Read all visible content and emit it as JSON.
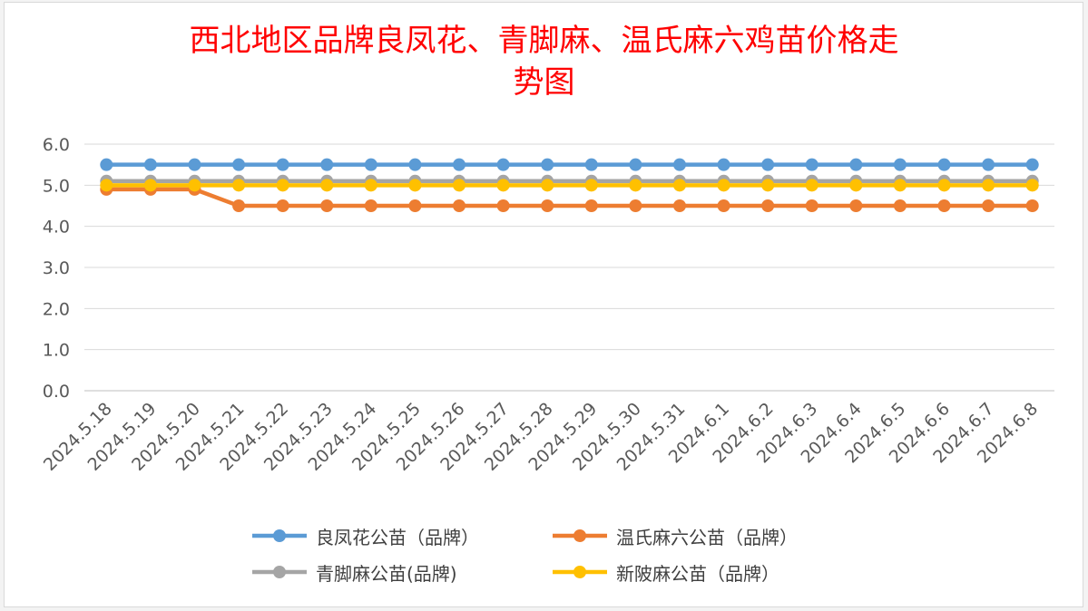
{
  "chart_data": {
    "type": "line",
    "title": "西北地区品牌良凤花、青脚麻、温氏麻六鸡苗价格走势图",
    "title_lines": [
      "西北地区品牌良凤花、青脚麻、温氏麻六鸡苗价格走",
      "势图"
    ],
    "xlabel": "",
    "ylabel": "",
    "ylim": [
      0,
      6
    ],
    "yticks": [
      "0.0",
      "1.0",
      "2.0",
      "3.0",
      "4.0",
      "5.0",
      "6.0"
    ],
    "grid": true,
    "legend_position": "bottom",
    "categories": [
      "2024.5.18",
      "2024.5.19",
      "2024.5.20",
      "2024.5.21",
      "2024.5.22",
      "2024.5.23",
      "2024.5.24",
      "2024.5.25",
      "2024.5.26",
      "2024.5.27",
      "2024.5.28",
      "2024.5.29",
      "2024.5.30",
      "2024.5.31",
      "2024.6.1",
      "2024.6.2",
      "2024.6.3",
      "2024.6.4",
      "2024.6.5",
      "2024.6.6",
      "2024.6.7",
      "2024.6.8"
    ],
    "series": [
      {
        "name": "良凤花公苗（品牌）",
        "color": "#5b9bd5",
        "values": [
          5.5,
          5.5,
          5.5,
          5.5,
          5.5,
          5.5,
          5.5,
          5.5,
          5.5,
          5.5,
          5.5,
          5.5,
          5.5,
          5.5,
          5.5,
          5.5,
          5.5,
          5.5,
          5.5,
          5.5,
          5.5,
          5.5
        ]
      },
      {
        "name": "温氏麻六公苗（品牌）",
        "color": "#ed7d31",
        "values": [
          4.9,
          4.9,
          4.9,
          4.5,
          4.5,
          4.5,
          4.5,
          4.5,
          4.5,
          4.5,
          4.5,
          4.5,
          4.5,
          4.5,
          4.5,
          4.5,
          4.5,
          4.5,
          4.5,
          4.5,
          4.5,
          4.5
        ]
      },
      {
        "name": "青脚麻公苗(品牌)",
        "color": "#a5a5a5",
        "values": [
          5.1,
          5.1,
          5.1,
          5.1,
          5.1,
          5.1,
          5.1,
          5.1,
          5.1,
          5.1,
          5.1,
          5.1,
          5.1,
          5.1,
          5.1,
          5.1,
          5.1,
          5.1,
          5.1,
          5.1,
          5.1,
          5.1
        ]
      },
      {
        "name": "新陂麻公苗（品牌）",
        "color": "#ffc000",
        "values": [
          5.0,
          5.0,
          5.0,
          5.0,
          5.0,
          5.0,
          5.0,
          5.0,
          5.0,
          5.0,
          5.0,
          5.0,
          5.0,
          5.0,
          5.0,
          5.0,
          5.0,
          5.0,
          5.0,
          5.0,
          5.0,
          5.0
        ]
      }
    ]
  }
}
